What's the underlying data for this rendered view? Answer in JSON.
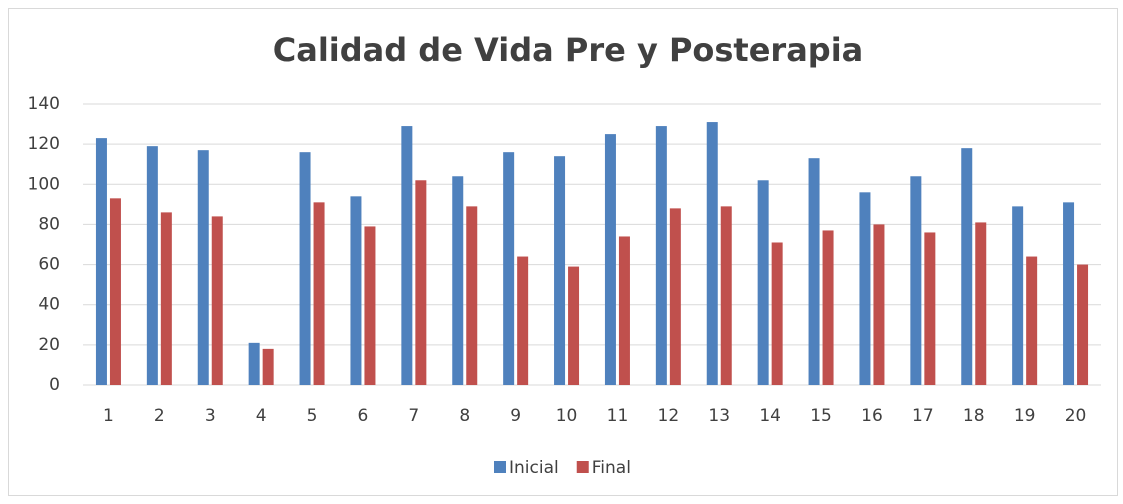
{
  "chart_data": {
    "type": "bar",
    "title": "Calidad de Vida Pre y Posterapia",
    "categories": [
      "1",
      "2",
      "3",
      "4",
      "5",
      "6",
      "7",
      "8",
      "9",
      "10",
      "11",
      "12",
      "13",
      "14",
      "15",
      "16",
      "17",
      "18",
      "19",
      "20"
    ],
    "series": [
      {
        "name": "Inicial",
        "color": "#4f81bd",
        "values": [
          123,
          119,
          117,
          21,
          116,
          94,
          129,
          104,
          116,
          114,
          125,
          129,
          131,
          102,
          113,
          96,
          104,
          118,
          89,
          91
        ]
      },
      {
        "name": "Final",
        "color": "#c0504d",
        "values": [
          93,
          86,
          84,
          18,
          91,
          79,
          102,
          89,
          64,
          59,
          74,
          88,
          89,
          71,
          77,
          80,
          76,
          81,
          64,
          60
        ]
      }
    ],
    "ylim": [
      0,
      140
    ],
    "yticks": [
      0,
      20,
      40,
      60,
      80,
      100,
      120,
      140
    ],
    "grid": true,
    "legend": "bottom"
  }
}
